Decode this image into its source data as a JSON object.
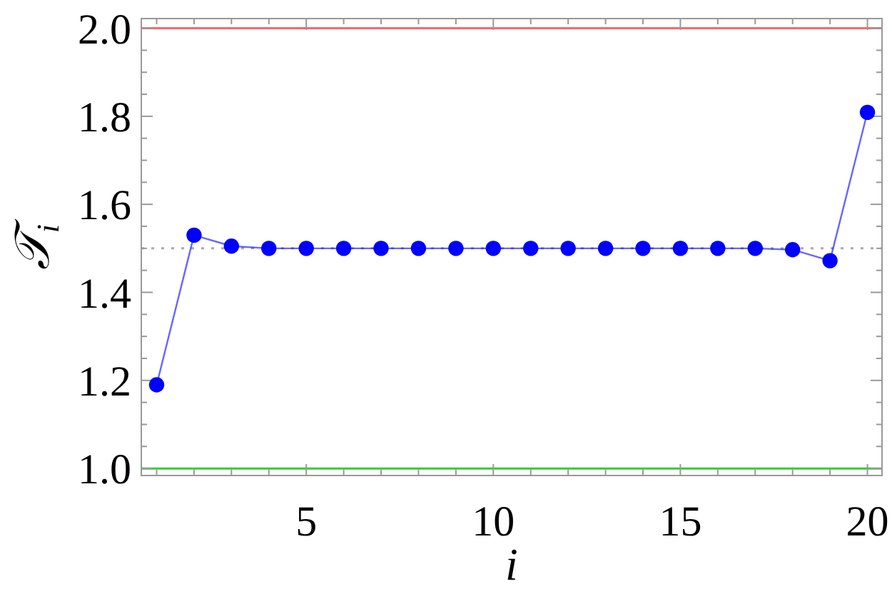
{
  "chart_data": {
    "type": "line",
    "xlabel": "i",
    "ylabel": "𝒯$_{i}$",
    "x": [
      1,
      2,
      3,
      4,
      5,
      6,
      7,
      8,
      9,
      10,
      11,
      12,
      13,
      14,
      15,
      16,
      17,
      18,
      19,
      20
    ],
    "series": [
      {
        "color": "#0000ff",
        "values": [
          1.19,
          1.53,
          1.505,
          1.5,
          1.5,
          1.5,
          1.5,
          1.5,
          1.5,
          1.5,
          1.5,
          1.5,
          1.5,
          1.5,
          1.5,
          1.5,
          1.5,
          1.497,
          1.472,
          1.809
        ]
      }
    ],
    "marker": "circle",
    "line_style": "solid",
    "grid": false,
    "xlim": [
      0.59,
      20.39
    ],
    "ylim": [
      0.984,
      2.022
    ],
    "xticks": [
      {
        "value": 1,
        "label": null
      },
      {
        "value": 2,
        "label": null
      },
      {
        "value": 3,
        "label": null
      },
      {
        "value": 4,
        "label": null
      },
      5,
      {
        "value": 6,
        "label": null
      },
      {
        "value": 7,
        "label": null
      },
      {
        "value": 8,
        "label": null
      },
      {
        "value": 9,
        "label": null
      },
      10,
      {
        "value": 11,
        "label": null
      },
      {
        "value": 12,
        "label": null
      },
      {
        "value": 13,
        "label": null
      },
      {
        "value": 14,
        "label": null
      },
      15,
      {
        "value": 16,
        "label": null
      },
      {
        "value": 17,
        "label": null
      },
      {
        "value": 18,
        "label": null
      },
      {
        "value": 19,
        "label": null
      },
      20
    ],
    "yticks": [
      {
        "value": 1,
        "label": "1.0"
      },
      {
        "value": 1.05,
        "label": null
      },
      {
        "value": 1.1,
        "label": null
      },
      {
        "value": 1.15,
        "label": null
      },
      1.2,
      {
        "value": 1.25,
        "label": null
      },
      {
        "value": 1.3,
        "label": null
      },
      {
        "value": 1.35,
        "label": null
      },
      1.4,
      {
        "value": 1.45,
        "label": null
      },
      {
        "value": 1.5,
        "label": null
      },
      {
        "value": 1.55,
        "label": null
      },
      1.6,
      {
        "value": 1.65,
        "label": null
      },
      {
        "value": 1.7,
        "label": null
      },
      {
        "value": 1.75,
        "label": null
      },
      1.8,
      {
        "value": 1.85,
        "label": null
      },
      {
        "value": 1.9,
        "label": null
      },
      {
        "value": 1.95,
        "label": null
      },
      {
        "value": 2,
        "label": "2.0"
      }
    ],
    "ref_lines": [
      {
        "axis": "y",
        "value": 2,
        "color": "#ff6666",
        "line_style": "solid"
      },
      {
        "axis": "y",
        "value": 1,
        "color": "#33cc33",
        "line_style": "solid"
      },
      {
        "axis": "y",
        "value": 1.5,
        "color": "#aaaaaa",
        "line_style": "dotted"
      }
    ]
  }
}
